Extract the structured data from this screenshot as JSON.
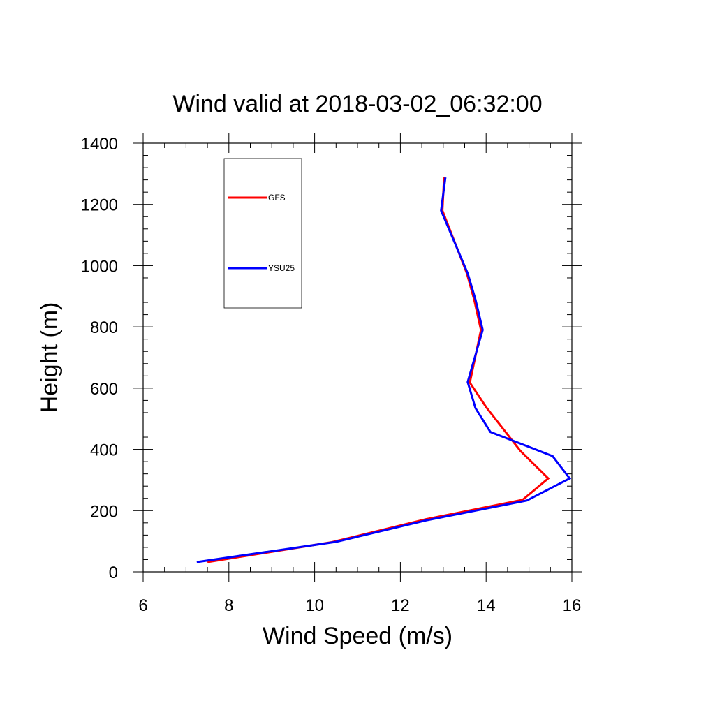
{
  "chart_data": {
    "type": "line",
    "title": "Wind valid at 2018-03-02_06:32:00",
    "xlabel": "Wind Speed (m/s)",
    "ylabel": "Height (m)",
    "xlim": [
      6,
      16
    ],
    "ylim": [
      0,
      1400
    ],
    "xticks": [
      6,
      8,
      10,
      12,
      14,
      16
    ],
    "yticks": [
      0,
      200,
      400,
      600,
      800,
      1000,
      1200,
      1400
    ],
    "grid": false,
    "legend_position": "top-left",
    "series": [
      {
        "name": "GFS",
        "color": "#ff0000",
        "points": [
          [
            7.5,
            32
          ],
          [
            10.4,
            97
          ],
          [
            12.6,
            172
          ],
          [
            14.85,
            235
          ],
          [
            15.45,
            305
          ],
          [
            14.8,
            395
          ],
          [
            14.0,
            538
          ],
          [
            13.62,
            618
          ],
          [
            13.88,
            790
          ],
          [
            13.72,
            890
          ],
          [
            13.55,
            975
          ],
          [
            12.98,
            1180
          ],
          [
            13.02,
            1288
          ]
        ]
      },
      {
        "name": "YSU25",
        "color": "#0000ff",
        "points": [
          [
            7.25,
            32
          ],
          [
            10.5,
            98
          ],
          [
            12.6,
            168
          ],
          [
            14.95,
            233
          ],
          [
            15.95,
            305
          ],
          [
            15.55,
            378
          ],
          [
            14.1,
            457
          ],
          [
            13.75,
            535
          ],
          [
            13.57,
            620
          ],
          [
            13.92,
            790
          ],
          [
            13.75,
            890
          ],
          [
            13.57,
            975
          ],
          [
            12.95,
            1180
          ],
          [
            13.05,
            1288
          ]
        ]
      }
    ]
  }
}
